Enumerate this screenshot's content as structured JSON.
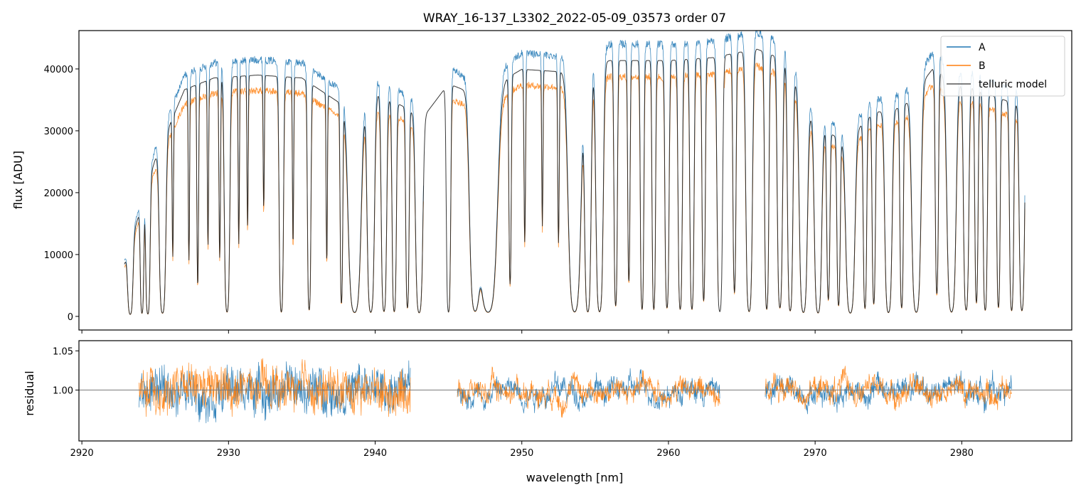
{
  "chart_data": [
    {
      "type": "line",
      "title": "WRAY_16-137_L3302_2022-05-09_03573  order 07",
      "xlabel": "",
      "ylabel": "flux [ADU]",
      "xlim": [
        2919.8,
        2987.5
      ],
      "ylim": [
        -2200,
        46200
      ],
      "yticks": [
        0,
        10000,
        20000,
        30000,
        40000
      ],
      "ytick_labels": [
        "0",
        "10000",
        "20000",
        "30000",
        "40000"
      ],
      "xticks": [
        2920,
        2930,
        2940,
        2950,
        2960,
        2970,
        2980
      ],
      "legend": {
        "location": "upper right",
        "entries": [
          "A",
          "B",
          "telluric model"
        ]
      },
      "series": [
        {
          "name": "A",
          "color": "#1f77b4",
          "x_start": 2922.9,
          "x_end": 2984.3,
          "gaps": [
            [
              2943.3,
              2945.0
            ],
            [
              2963.4,
              2963.8
            ]
          ]
        },
        {
          "name": "B",
          "color": "#ff7f0e",
          "x_start": 2922.9,
          "x_end": 2984.3,
          "gaps": [
            [
              2943.3,
              2945.0
            ],
            [
              2963.4,
              2963.8
            ]
          ]
        },
        {
          "name": "telluric model",
          "color": "#222222",
          "x_start": 2922.9,
          "x_end": 2984.3
        }
      ]
    },
    {
      "type": "line",
      "title": "",
      "xlabel": "wavelength [nm]",
      "ylabel": "residual",
      "xlim": [
        2919.8,
        2987.5
      ],
      "ylim": [
        0.935,
        1.063
      ],
      "yticks": [
        1.0,
        1.05
      ],
      "ytick_labels": [
        "1.00",
        "1.05"
      ],
      "xticks": [
        2920,
        2930,
        2940,
        2950,
        2960,
        2970,
        2980
      ],
      "xtick_labels": [
        "2920",
        "2930",
        "2940",
        "2950",
        "2960",
        "2970",
        "2980"
      ],
      "reference_line": 1.0,
      "segments": [
        [
          2923.9,
          2942.4
        ],
        [
          2945.6,
          2963.5
        ],
        [
          2966.6,
          2983.4
        ]
      ],
      "series": [
        {
          "name": "A",
          "color": "#1f77b4"
        },
        {
          "name": "B",
          "color": "#ff7f0e"
        }
      ]
    }
  ]
}
